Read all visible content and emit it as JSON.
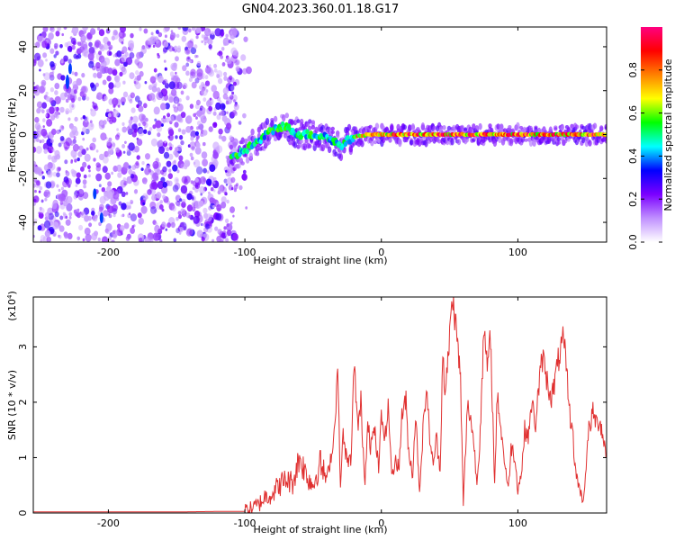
{
  "title": "GN04.2023.360.01.18.G17",
  "chart_data": [
    {
      "type": "heatmap",
      "xlabel": "Height of straight line (km)",
      "ylabel": "Frequency (Hz)",
      "xlim": [
        -255,
        165
      ],
      "ylim": [
        -49,
        49
      ],
      "xticks": [
        -200,
        -100,
        0,
        100
      ],
      "yticks": [
        -40,
        -20,
        0,
        20,
        40
      ],
      "noise_region_x": [
        -255,
        -105
      ],
      "signal_ridge": {
        "x": [
          -110,
          -100,
          -90,
          -80,
          -72,
          -60,
          -50,
          -40,
          -30,
          -20,
          -10,
          0,
          20,
          40,
          60,
          80,
          100,
          120,
          140,
          165
        ],
        "y": [
          -11,
          -7,
          -3,
          2,
          4,
          0,
          0,
          -1,
          -5,
          -1,
          0,
          0,
          0,
          0,
          0,
          0,
          0,
          0,
          0,
          0
        ]
      },
      "colorbar": {
        "label": "Normalized spectral amplitude",
        "range": [
          0,
          1
        ],
        "ticks": [
          "0.0",
          "0.2",
          "0.4",
          "0.6",
          "0.8"
        ],
        "colors": [
          "#ffffff",
          "#c090ff",
          "#7b00ff",
          "#0000ff",
          "#00ffff",
          "#00ff00",
          "#ffff00",
          "#ff8000",
          "#ff0000",
          "#ff0080"
        ]
      }
    },
    {
      "type": "line",
      "xlabel": "Height of straight line (km)",
      "ylabel": "SNR (10 * v/v)",
      "y_multiplier": "(x10",
      "y_multiplier_exp": "4",
      "y_multiplier_close": ")",
      "xlim": [
        -255,
        165
      ],
      "ylim": [
        0,
        3.9
      ],
      "xticks": [
        -200,
        -100,
        0,
        100
      ],
      "yticks": [
        0,
        1,
        2,
        3
      ],
      "line_color": "#e03030",
      "series": [
        {
          "x": [
            -255,
            -200,
            -150,
            -110,
            -100,
            -95,
            -90,
            -85,
            -80,
            -75,
            -70,
            -65,
            -60,
            -55,
            -50,
            -45,
            -40,
            -35,
            -32,
            -30,
            -28,
            -25,
            -22,
            -20,
            -17,
            -15,
            -12,
            -10,
            -8,
            -5,
            -2,
            0,
            3,
            5,
            8,
            10,
            13,
            15,
            18,
            20,
            23,
            25,
            28,
            30,
            33,
            35,
            38,
            40,
            43,
            45,
            47,
            50,
            52,
            55,
            58,
            60,
            63,
            65,
            68,
            70,
            72,
            75,
            78,
            80,
            83,
            85,
            88,
            90,
            93,
            95,
            98,
            100,
            103,
            105,
            108,
            110,
            113,
            115,
            118,
            120,
            122,
            125,
            128,
            130,
            133,
            135,
            138,
            140,
            142,
            145,
            148,
            150,
            152,
            155,
            158,
            160,
            163,
            165
          ],
          "y": [
            0.02,
            0.02,
            0.02,
            0.03,
            0.03,
            0.08,
            0.15,
            0.3,
            0.35,
            0.5,
            0.6,
            0.55,
            1.0,
            0.7,
            0.5,
            0.9,
            0.6,
            1.3,
            2.6,
            0.5,
            1.4,
            0.9,
            1.0,
            2.7,
            1.5,
            2.0,
            0.5,
            1.8,
            1.2,
            1.5,
            0.8,
            1.7,
            1.4,
            1.9,
            0.6,
            1.0,
            0.8,
            1.8,
            2.0,
            1.1,
            0.7,
            1.8,
            0.4,
            1.3,
            2.3,
            1.5,
            0.8,
            1.4,
            0.8,
            2.9,
            2.1,
            3.2,
            3.9,
            3.3,
            2.4,
            0.15,
            1.9,
            1.8,
            1.2,
            0.5,
            1.3,
            3.2,
            2.6,
            3.2,
            0.5,
            2.2,
            1.4,
            1.0,
            0.4,
            1.2,
            1.0,
            0.4,
            0.8,
            1.5,
            1.4,
            2.0,
            1.6,
            2.2,
            2.8,
            2.6,
            2.3,
            2.1,
            2.5,
            2.8,
            3.1,
            2.8,
            1.8,
            1.5,
            0.8,
            0.45,
            0.2,
            0.9,
            1.5,
            1.8,
            1.6,
            1.7,
            1.3,
            1.0
          ]
        }
      ]
    }
  ]
}
